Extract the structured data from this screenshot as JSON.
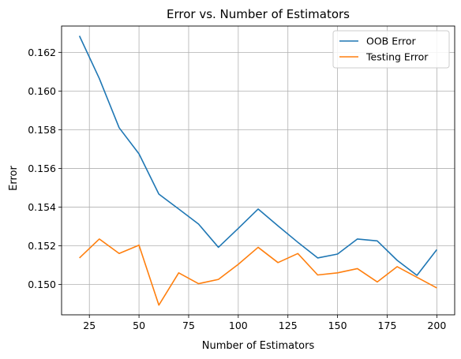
{
  "chart_data": {
    "type": "line",
    "title": "Error vs. Number of Estimators",
    "xlabel": "Number of Estimators",
    "ylabel": "Error",
    "x": [
      20,
      30,
      40,
      50,
      60,
      70,
      80,
      90,
      100,
      110,
      120,
      130,
      140,
      150,
      160,
      170,
      180,
      190,
      200
    ],
    "series": [
      {
        "name": "OOB Error",
        "color": "#1f77b4",
        "values": [
          0.16285,
          0.16065,
          0.1581,
          0.15675,
          0.15467,
          0.1539,
          0.15312,
          0.15192,
          0.1529,
          0.1539,
          0.15303,
          0.15218,
          0.15137,
          0.15157,
          0.15235,
          0.15225,
          0.15125,
          0.15047,
          0.1518
        ]
      },
      {
        "name": "Testing Error",
        "color": "#ff7f0e",
        "values": [
          0.15137,
          0.15235,
          0.1516,
          0.15203,
          0.14893,
          0.1506,
          0.15004,
          0.15026,
          0.15104,
          0.15192,
          0.15113,
          0.1516,
          0.15049,
          0.1506,
          0.15082,
          0.15013,
          0.15092,
          0.15037,
          0.14982
        ]
      }
    ],
    "xlim": [
      11,
      209
    ],
    "ylim": [
      0.14843,
      0.16336
    ],
    "xticks": [
      25,
      50,
      75,
      100,
      125,
      150,
      175,
      200
    ],
    "xtick_labels": [
      "25",
      "50",
      "75",
      "100",
      "125",
      "150",
      "175",
      "200"
    ],
    "yticks": [
      0.15,
      0.152,
      0.154,
      0.156,
      0.158,
      0.16,
      0.162
    ],
    "ytick_labels": [
      "0.150",
      "0.152",
      "0.154",
      "0.156",
      "0.158",
      "0.160",
      "0.162"
    ],
    "grid": true,
    "legend": "top-right"
  }
}
